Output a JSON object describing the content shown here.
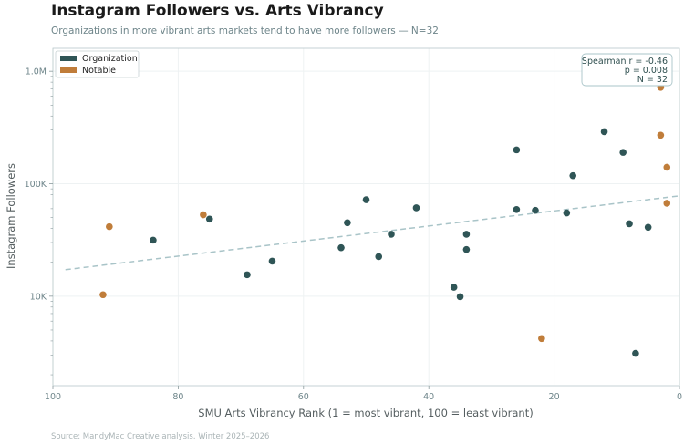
{
  "chart_data": {
    "type": "scatter",
    "title": "Instagram Followers vs. Arts Vibrancy",
    "subtitle": "Organizations in more vibrant arts markets tend to have more followers — N=32",
    "xlabel": "SMU Arts Vibrancy Rank  (1 = most vibrant, 100 = least vibrant)",
    "ylabel": "Instagram Followers",
    "source": "Source: MandyMac Creative analysis, Winter 2025–2026",
    "x_range": [
      100,
      0
    ],
    "x_reversed": true,
    "y_scale": "log",
    "y_range": [
      1600,
      1600000
    ],
    "x_ticks": [
      100,
      80,
      60,
      40,
      20,
      0
    ],
    "x_tick_labels": [
      "100",
      "80",
      "60",
      "40",
      "20",
      "0"
    ],
    "y_ticks": [
      10000,
      100000,
      1000000
    ],
    "y_tick_labels": [
      "10K",
      "100K",
      "1.0M"
    ],
    "grid": true,
    "legend": "top-left",
    "series": [
      {
        "name": "Organization",
        "color": "#2f5556",
        "points": [
          {
            "x": 84,
            "y": 31500
          },
          {
            "x": 75,
            "y": 48500
          },
          {
            "x": 69,
            "y": 15500
          },
          {
            "x": 65,
            "y": 20500
          },
          {
            "x": 54,
            "y": 27000
          },
          {
            "x": 53,
            "y": 45000
          },
          {
            "x": 50,
            "y": 72000
          },
          {
            "x": 48,
            "y": 22500
          },
          {
            "x": 46,
            "y": 35500
          },
          {
            "x": 42,
            "y": 61000
          },
          {
            "x": 36,
            "y": 12000
          },
          {
            "x": 35,
            "y": 9900
          },
          {
            "x": 34,
            "y": 35500
          },
          {
            "x": 34,
            "y": 26000
          },
          {
            "x": 26,
            "y": 200000
          },
          {
            "x": 26,
            "y": 59000
          },
          {
            "x": 23,
            "y": 58000
          },
          {
            "x": 18,
            "y": 55000
          },
          {
            "x": 17,
            "y": 118000
          },
          {
            "x": 12,
            "y": 290000
          },
          {
            "x": 9,
            "y": 190000
          },
          {
            "x": 8,
            "y": 44000
          },
          {
            "x": 7,
            "y": 3100
          },
          {
            "x": 5,
            "y": 41000
          }
        ]
      },
      {
        "name": "Notable",
        "color": "#c07d3a",
        "points": [
          {
            "x": 92,
            "y": 10300
          },
          {
            "x": 91,
            "y": 41500
          },
          {
            "x": 76,
            "y": 53000
          },
          {
            "x": 22,
            "y": 4200
          },
          {
            "x": 3,
            "y": 270000
          },
          {
            "x": 3,
            "y": 720000
          },
          {
            "x": 2,
            "y": 140000
          },
          {
            "x": 2,
            "y": 67000
          }
        ]
      }
    ],
    "trendline": {
      "x_start": 98,
      "y_start": 17200,
      "x_end": 0,
      "y_end": 78000,
      "color": "#a9c4c8",
      "style": "dashed"
    },
    "stats": {
      "line1": "Spearman r = -0.46",
      "line2": "p = 0.008",
      "line3": "N = 32"
    }
  }
}
